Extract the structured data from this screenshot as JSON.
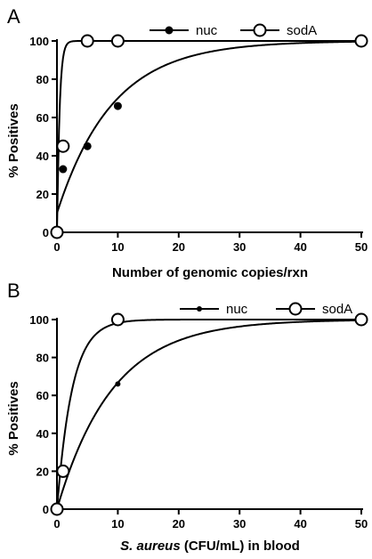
{
  "chart_data": [
    {
      "type": "scatter",
      "panel_label": "A",
      "xlabel": "Number of genomic copies/rxn",
      "ylabel": "% Positives",
      "xlim": [
        0,
        50
      ],
      "ylim": [
        0,
        100
      ],
      "xticks": [
        0,
        10,
        20,
        30,
        40,
        50
      ],
      "yticks": [
        0,
        20,
        40,
        60,
        80,
        100
      ],
      "legend_position": "top",
      "series": [
        {
          "name": "nuc",
          "marker": "filled-circle",
          "x": [
            0,
            1,
            5,
            10,
            50
          ],
          "y": [
            0,
            33,
            45,
            66,
            100
          ],
          "fit_k": 0.11,
          "fit_y0": 10
        },
        {
          "name": "sodA",
          "marker": "open-circle",
          "x": [
            0,
            1,
            5,
            10,
            50
          ],
          "y": [
            0,
            45,
            100,
            100,
            100
          ],
          "fit_k": 2.5,
          "fit_y0": -8
        }
      ]
    },
    {
      "type": "scatter",
      "panel_label": "B",
      "xlabel_italic": "S. aureus",
      "xlabel_rest": " (CFU/mL) in blood",
      "ylabel": "% Positives",
      "xlim": [
        0,
        50
      ],
      "ylim": [
        0,
        100
      ],
      "xticks": [
        0,
        10,
        20,
        30,
        40,
        50
      ],
      "yticks": [
        0,
        20,
        40,
        60,
        80,
        100
      ],
      "legend_position": "top",
      "series": [
        {
          "name": "nuc",
          "marker": "small-filled-circle",
          "x": [
            0,
            1,
            10,
            50
          ],
          "y": [
            0,
            20,
            66,
            100
          ],
          "fit_k": 0.11,
          "fit_y0": 0
        },
        {
          "name": "sodA",
          "marker": "open-circle",
          "x": [
            0,
            1,
            10,
            50
          ],
          "y": [
            0,
            20,
            100,
            100
          ],
          "fit_k": 0.4,
          "fit_y0": 0
        }
      ]
    }
  ]
}
